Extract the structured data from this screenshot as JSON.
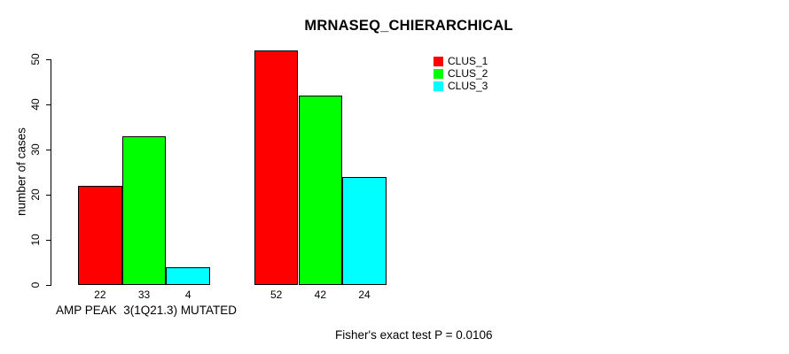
{
  "chart_data": {
    "type": "bar",
    "title": "MRNASEQ_CHIERARCHICAL",
    "ylabel": "number of cases",
    "xlabel": "AMP PEAK  3(1Q21.3) MUTATED",
    "annotation": "Fisher's exact test P = 0.0106",
    "categories": [
      "AMP PEAK  3(1Q21.3) MUTATED",
      ""
    ],
    "series": [
      {
        "name": "CLUS_1",
        "color": "#ff0000",
        "values": [
          22,
          52
        ]
      },
      {
        "name": "CLUS_2",
        "color": "#00ff00",
        "values": [
          33,
          42
        ]
      },
      {
        "name": "CLUS_3",
        "color": "#00ffff",
        "values": [
          4,
          24
        ]
      }
    ],
    "bar_value_labels": [
      [
        22,
        33,
        4
      ],
      [
        52,
        42,
        24
      ]
    ],
    "yticks": [
      0,
      10,
      20,
      30,
      40,
      50
    ],
    "ylim": [
      0,
      50
    ],
    "grid": false,
    "legend_position": "top-right",
    "bar_border_color": "#000000",
    "background_color": "#ffffff"
  }
}
